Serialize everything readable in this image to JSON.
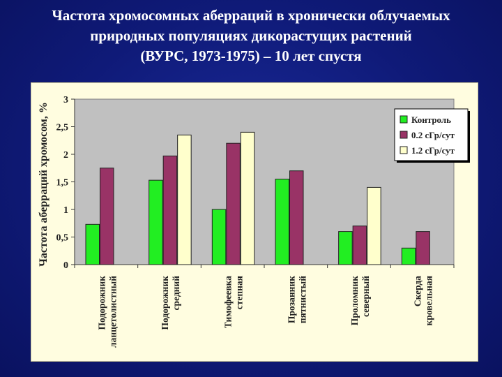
{
  "title_lines": [
    "Частота хромосомных аберраций в хронически облучаемых",
    "природных популяциях дикорастущих растений",
    "(ВУРС, 1973-1975) – 10 лет спустя"
  ],
  "chart_data": {
    "type": "bar",
    "ylabel": "Частота аберраций хромосом, %",
    "ylim": [
      0,
      3
    ],
    "ytick_labels": [
      "0",
      "0,5",
      "1",
      "1,5",
      "2",
      "2,5",
      "3"
    ],
    "ytick_values": [
      0,
      0.5,
      1,
      1.5,
      2,
      2.5,
      3
    ],
    "grid": false,
    "legend_position": "top-right",
    "categories": [
      [
        "Подорожник",
        "ланцетолистный"
      ],
      [
        "Подорожник",
        "средний"
      ],
      [
        "Тимофеевка",
        "степная"
      ],
      [
        "Прозанник",
        "пятнистый"
      ],
      [
        "Проломник",
        "северный"
      ],
      [
        "Скерда",
        "кровельная"
      ]
    ],
    "series": [
      {
        "name": "Контроль",
        "color": "#22ee22",
        "values": [
          0.73,
          1.53,
          1.0,
          1.55,
          0.6,
          0.3
        ]
      },
      {
        "name": "0.2 сГр/сут",
        "color": "#993366",
        "values": [
          1.75,
          1.97,
          2.2,
          1.7,
          0.7,
          0.6
        ]
      },
      {
        "name": "1.2 сГр/сут",
        "color": "#ffffcc",
        "values": [
          null,
          2.35,
          2.4,
          null,
          1.4,
          null
        ]
      }
    ]
  }
}
